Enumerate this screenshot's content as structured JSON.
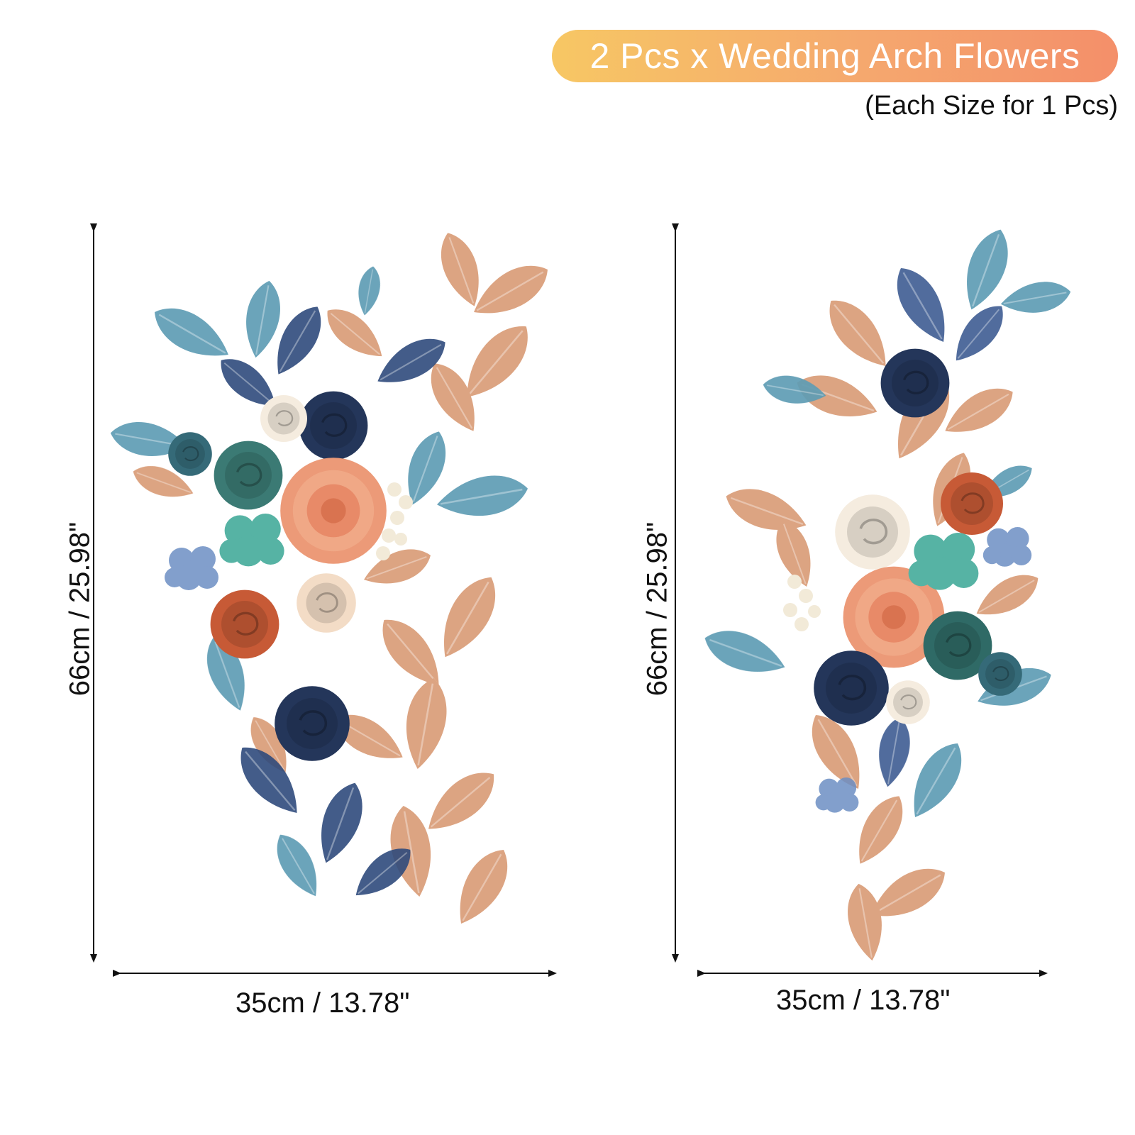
{
  "header": {
    "title": "2 Pcs x Wedding Arch Flowers",
    "subtitle": "(Each Size for 1 Pcs)"
  },
  "items": [
    {
      "height_label": "66cm / 25.98\"",
      "width_label": "35cm / 13.78\""
    },
    {
      "height_label": "66cm / 25.98\"",
      "width_label": "35cm / 13.78\""
    }
  ],
  "colors": {
    "pill_start": "#f7c764",
    "pill_end": "#f48f6a",
    "navy": "#24365a",
    "slate_blue": "#4a6a9c",
    "teal_leaf": "#5e9cb4",
    "peach_leaf": "#d99a74",
    "dahlia": "#ec9a78",
    "cream": "#f5ecdf",
    "rust": "#c75a36",
    "mint": "#56b3a4"
  }
}
